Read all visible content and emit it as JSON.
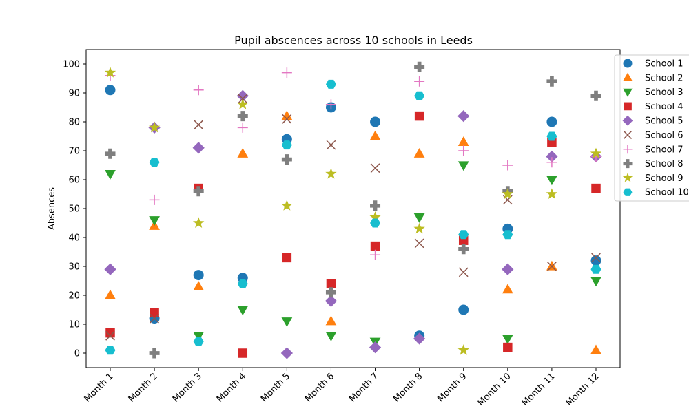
{
  "chart_data": {
    "type": "scatter",
    "title": "Pupil abscences across 10 schools in Leeds",
    "xlabel": "",
    "ylabel": "Absences",
    "categories": [
      "Month 1",
      "Month 2",
      "Month 3",
      "Month 4",
      "Month 5",
      "Month 6",
      "Month 7",
      "Month 8",
      "Month 9",
      "Month 10",
      "Month 11",
      "Month 12"
    ],
    "yticks": [
      0,
      10,
      20,
      30,
      40,
      50,
      60,
      70,
      80,
      90,
      100
    ],
    "ylim": [
      -5,
      105
    ],
    "grid": false,
    "legend_position": "top-right outside",
    "series": [
      {
        "name": "School 1",
        "marker": "circle",
        "color": "#1f77b4",
        "values": [
          91,
          12,
          27,
          26,
          74,
          85,
          80,
          6,
          15,
          43,
          80,
          32
        ]
      },
      {
        "name": "School 2",
        "marker": "triangle-up",
        "color": "#ff7f0e",
        "values": [
          20,
          44,
          23,
          69,
          82,
          11,
          75,
          69,
          73,
          22,
          30,
          1
        ]
      },
      {
        "name": "School 3",
        "marker": "triangle-down",
        "color": "#2ca02c",
        "values": [
          62,
          46,
          6,
          15,
          11,
          6,
          4,
          47,
          65,
          5,
          60,
          25
        ]
      },
      {
        "name": "School 4",
        "marker": "square",
        "color": "#d62728",
        "values": [
          7,
          14,
          57,
          0,
          33,
          24,
          37,
          82,
          39,
          2,
          73,
          57
        ]
      },
      {
        "name": "School 5",
        "marker": "diamond",
        "color": "#9467bd",
        "values": [
          29,
          78,
          71,
          89,
          0,
          18,
          2,
          5,
          82,
          29,
          68,
          68
        ]
      },
      {
        "name": "School 6",
        "marker": "x",
        "color": "#8c564b",
        "values": [
          6,
          12,
          79,
          88,
          81,
          72,
          64,
          38,
          28,
          53,
          30,
          33
        ]
      },
      {
        "name": "School 7",
        "marker": "plus-thin",
        "color": "#e377c2",
        "values": [
          96,
          53,
          91,
          78,
          97,
          86,
          34,
          94,
          70,
          65,
          66,
          68
        ]
      },
      {
        "name": "School 8",
        "marker": "plus-thick",
        "color": "#7f7f7f",
        "values": [
          69,
          0,
          56,
          82,
          67,
          21,
          51,
          99,
          36,
          56,
          94,
          89
        ]
      },
      {
        "name": "School 9",
        "marker": "star",
        "color": "#bcbd22",
        "values": [
          97,
          78,
          45,
          86,
          51,
          62,
          47,
          43,
          1,
          55,
          55,
          69
        ]
      },
      {
        "name": "School 10",
        "marker": "hexagon",
        "color": "#17becf",
        "values": [
          1,
          66,
          4,
          24,
          72,
          93,
          45,
          89,
          41,
          41,
          75,
          29
        ]
      }
    ]
  }
}
